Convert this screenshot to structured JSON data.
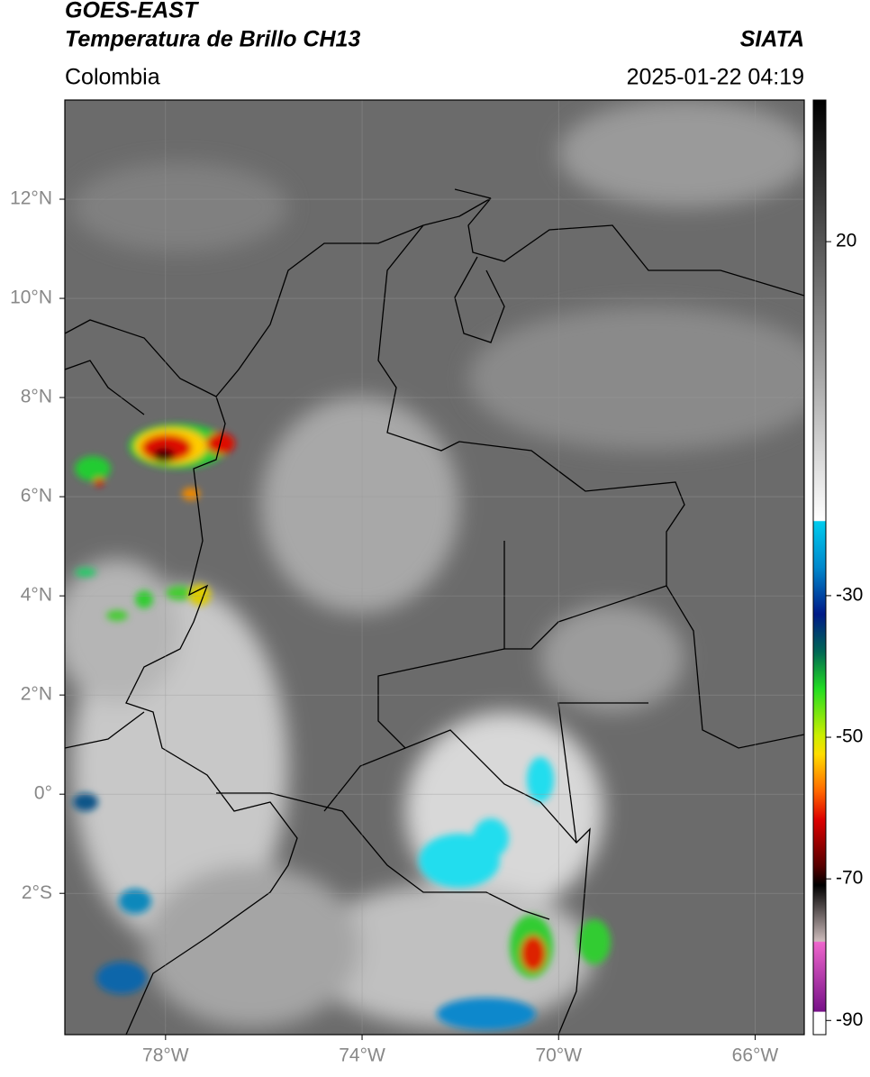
{
  "header": {
    "title": "GOES-EAST",
    "subtitle": "Temperatura de Brillo CH13",
    "source": "SIATA",
    "region": "Colombia",
    "timestamp": "2025-01-22 04:19"
  },
  "map": {
    "lonlim": [
      -80.05,
      -65
    ],
    "latlim": [
      -4.85,
      14
    ],
    "grid": true,
    "xticks": [
      {
        "value": -78,
        "label": "78°W"
      },
      {
        "value": -74,
        "label": "74°W"
      },
      {
        "value": -70,
        "label": "70°W"
      },
      {
        "value": -66,
        "label": "66°W"
      }
    ],
    "yticks": [
      {
        "value": 12,
        "label": "12°N"
      },
      {
        "value": 10,
        "label": "10°N"
      },
      {
        "value": 8,
        "label": "8°N"
      },
      {
        "value": 6,
        "label": "6°N"
      },
      {
        "value": 4,
        "label": "4°N"
      },
      {
        "value": 2,
        "label": "2°N"
      },
      {
        "value": 0,
        "label": "0°"
      },
      {
        "value": -2,
        "label": "2°S"
      }
    ]
  },
  "colorbar": {
    "lim": [
      -92,
      40
    ],
    "ticks": [
      20,
      -30,
      -50,
      -70,
      -90
    ]
  }
}
